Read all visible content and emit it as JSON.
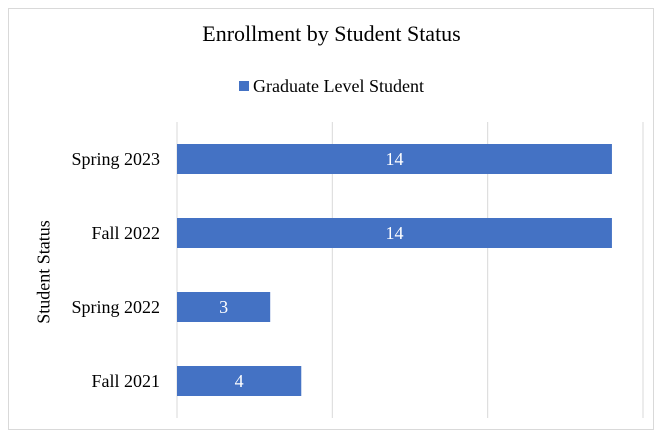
{
  "chart_data": {
    "type": "bar",
    "orientation": "horizontal",
    "title": "Enrollment by Student Status",
    "ylabel": "Student Status",
    "xlabel": "",
    "categories": [
      "Spring 2023",
      "Fall 2022",
      "Spring 2022",
      "Fall 2021"
    ],
    "series": [
      {
        "name": "Graduate Level Student",
        "values": [
          14,
          14,
          3,
          4
        ],
        "color": "#4472c4"
      }
    ],
    "xlim": [
      0,
      15
    ],
    "gridlines": [
      0,
      5,
      10,
      15
    ],
    "grid": true,
    "legend": "top-center",
    "data_labels": true
  },
  "colors": {
    "bar": "#4472c4",
    "grid": "#d9d9d9",
    "border": "#d9d9d9"
  }
}
